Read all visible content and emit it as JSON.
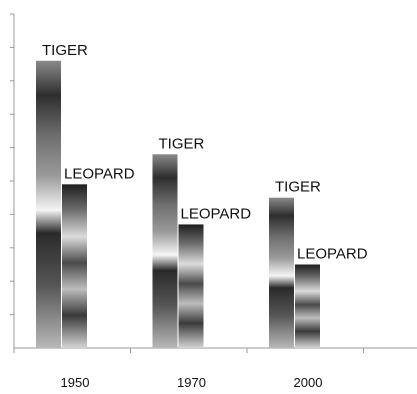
{
  "chart_data": {
    "type": "bar",
    "categories": [
      "1950",
      "1970",
      "2000"
    ],
    "series": [
      {
        "name": "TIGER",
        "values": [
          86,
          58,
          45
        ]
      },
      {
        "name": "LEOPARD",
        "values": [
          49,
          37,
          25
        ]
      }
    ],
    "ylim": [
      0,
      100
    ],
    "grid": false,
    "legend": "none",
    "title": "",
    "xlabel": "",
    "ylabel": ""
  }
}
